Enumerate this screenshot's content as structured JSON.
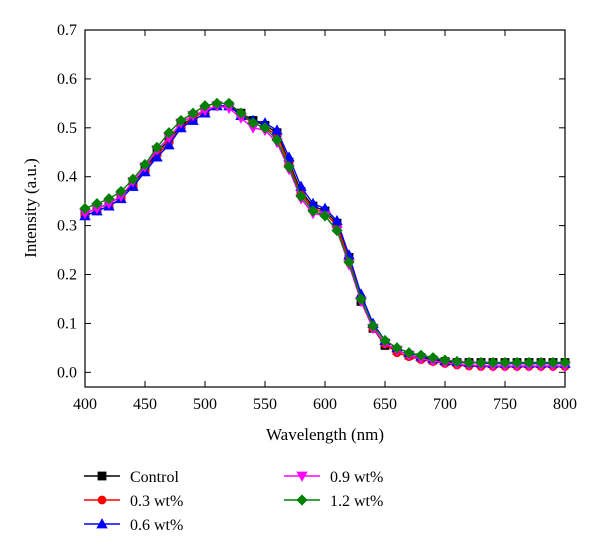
{
  "chart_data": {
    "type": "line",
    "xlabel": "Wavelength (nm)",
    "ylabel": "Intensity (a.u.)",
    "xlim": [
      400,
      800
    ],
    "ylim": [
      -0.03,
      0.7
    ],
    "x_ticks": [
      400,
      450,
      500,
      550,
      600,
      650,
      700,
      750,
      800
    ],
    "y_ticks": [
      0.0,
      0.1,
      0.2,
      0.3,
      0.4,
      0.5,
      0.6,
      0.7
    ],
    "x_tick_labels": [
      "400",
      "450",
      "500",
      "550",
      "600",
      "650",
      "700",
      "750",
      "800"
    ],
    "y_tick_labels": [
      "0.0",
      "0.1",
      "0.2",
      "0.3",
      "0.4",
      "0.5",
      "0.6",
      "0.7"
    ],
    "grid": false,
    "legend_position": "bottom",
    "x": [
      400,
      410,
      420,
      430,
      440,
      450,
      460,
      470,
      480,
      490,
      500,
      510,
      520,
      530,
      540,
      550,
      560,
      570,
      580,
      590,
      600,
      610,
      620,
      630,
      640,
      650,
      660,
      670,
      680,
      690,
      700,
      710,
      720,
      730,
      740,
      750,
      760,
      770,
      780,
      790,
      800
    ],
    "series": [
      {
        "name": "Control",
        "color": "#000000",
        "marker": "square",
        "values": [
          0.325,
          0.335,
          0.345,
          0.36,
          0.385,
          0.415,
          0.45,
          0.475,
          0.505,
          0.52,
          0.535,
          0.545,
          0.545,
          0.53,
          0.515,
          0.505,
          0.49,
          0.43,
          0.37,
          0.34,
          0.33,
          0.305,
          0.235,
          0.145,
          0.09,
          0.055,
          0.045,
          0.035,
          0.03,
          0.025,
          0.022,
          0.02,
          0.02,
          0.02,
          0.02,
          0.02,
          0.02,
          0.02,
          0.02,
          0.02,
          0.02
        ]
      },
      {
        "name": "0.3 wt%",
        "color": "#ff0000",
        "marker": "circle",
        "values": [
          0.32,
          0.33,
          0.34,
          0.355,
          0.38,
          0.41,
          0.445,
          0.47,
          0.5,
          0.52,
          0.535,
          0.545,
          0.545,
          0.525,
          0.51,
          0.5,
          0.485,
          0.425,
          0.365,
          0.335,
          0.325,
          0.3,
          0.23,
          0.15,
          0.09,
          0.058,
          0.04,
          0.032,
          0.026,
          0.022,
          0.018,
          0.015,
          0.013,
          0.012,
          0.012,
          0.012,
          0.012,
          0.012,
          0.012,
          0.012,
          0.012
        ]
      },
      {
        "name": "0.6 wt%",
        "color": "#0000ff",
        "marker": "triangle-up",
        "values": [
          0.32,
          0.33,
          0.34,
          0.355,
          0.38,
          0.41,
          0.44,
          0.465,
          0.5,
          0.515,
          0.53,
          0.545,
          0.545,
          0.525,
          0.515,
          0.51,
          0.495,
          0.44,
          0.38,
          0.345,
          0.335,
          0.31,
          0.24,
          0.16,
          0.1,
          0.065,
          0.05,
          0.04,
          0.033,
          0.028,
          0.024,
          0.022,
          0.02,
          0.019,
          0.018,
          0.018,
          0.018,
          0.018,
          0.018,
          0.018,
          0.018
        ]
      },
      {
        "name": "0.9 wt%",
        "color": "#ff00ff",
        "marker": "triangle-down",
        "values": [
          0.325,
          0.335,
          0.345,
          0.36,
          0.39,
          0.42,
          0.455,
          0.48,
          0.51,
          0.525,
          0.535,
          0.545,
          0.54,
          0.52,
          0.5,
          0.495,
          0.47,
          0.415,
          0.355,
          0.325,
          0.32,
          0.29,
          0.22,
          0.145,
          0.09,
          0.06,
          0.045,
          0.035,
          0.028,
          0.023,
          0.02,
          0.017,
          0.015,
          0.014,
          0.013,
          0.013,
          0.013,
          0.013,
          0.013,
          0.013,
          0.013
        ]
      },
      {
        "name": "1.2 wt%",
        "color": "#008000",
        "marker": "diamond",
        "values": [
          0.335,
          0.345,
          0.355,
          0.37,
          0.395,
          0.425,
          0.46,
          0.49,
          0.515,
          0.53,
          0.545,
          0.55,
          0.55,
          0.53,
          0.51,
          0.5,
          0.475,
          0.42,
          0.36,
          0.33,
          0.32,
          0.29,
          0.225,
          0.15,
          0.095,
          0.065,
          0.05,
          0.04,
          0.035,
          0.03,
          0.025,
          0.022,
          0.02,
          0.02,
          0.02,
          0.02,
          0.02,
          0.02,
          0.02,
          0.02,
          0.02
        ]
      }
    ]
  }
}
